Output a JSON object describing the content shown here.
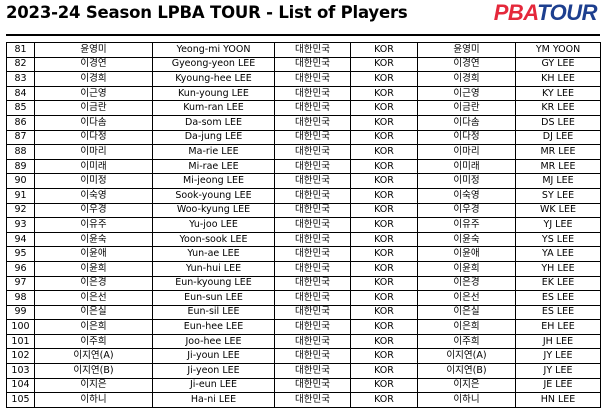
{
  "header": {
    "title": "2023-24 Season LPBA TOUR - List of Players",
    "logo_part1": "PBA",
    "logo_part2": "TOUR"
  },
  "colors": {
    "logo_red": "#e5283b",
    "logo_blue": "#1d3f8f"
  },
  "rows": [
    [
      "81",
      "윤영미",
      "Yeong-mi YOON",
      "대한민국",
      "KOR",
      "윤영미",
      "YM YOON"
    ],
    [
      "82",
      "이경연",
      "Gyeong-yeon LEE",
      "대한민국",
      "KOR",
      "이경연",
      "GY LEE"
    ],
    [
      "83",
      "이경희",
      "Kyoung-hee LEE",
      "대한민국",
      "KOR",
      "이경희",
      "KH LEE"
    ],
    [
      "84",
      "이근영",
      "Kun-young LEE",
      "대한민국",
      "KOR",
      "이근영",
      "KY LEE"
    ],
    [
      "85",
      "이금란",
      "Kum-ran LEE",
      "대한민국",
      "KOR",
      "이금란",
      "KR LEE"
    ],
    [
      "86",
      "이다솜",
      "Da-som LEE",
      "대한민국",
      "KOR",
      "이다솜",
      "DS LEE"
    ],
    [
      "87",
      "이다정",
      "Da-jung LEE",
      "대한민국",
      "KOR",
      "이다정",
      "DJ LEE"
    ],
    [
      "88",
      "이마리",
      "Ma-rie LEE",
      "대한민국",
      "KOR",
      "이마리",
      "MR LEE"
    ],
    [
      "89",
      "이미래",
      "Mi-rae LEE",
      "대한민국",
      "KOR",
      "이미래",
      "MR LEE"
    ],
    [
      "90",
      "이미정",
      "Mi-jeong LEE",
      "대한민국",
      "KOR",
      "이미정",
      "MJ LEE"
    ],
    [
      "91",
      "이숙영",
      "Sook-young LEE",
      "대한민국",
      "KOR",
      "이숙영",
      "SY LEE"
    ],
    [
      "92",
      "이우경",
      "Woo-kyung LEE",
      "대한민국",
      "KOR",
      "이우경",
      "WK LEE"
    ],
    [
      "93",
      "이유주",
      "Yu-joo LEE",
      "대한민국",
      "KOR",
      "이유주",
      "YJ LEE"
    ],
    [
      "94",
      "이윤숙",
      "Yoon-sook LEE",
      "대한민국",
      "KOR",
      "이윤숙",
      "YS LEE"
    ],
    [
      "95",
      "이윤애",
      "Yun-ae LEE",
      "대한민국",
      "KOR",
      "이윤애",
      "YA LEE"
    ],
    [
      "96",
      "이윤희",
      "Yun-hui LEE",
      "대한민국",
      "KOR",
      "이윤희",
      "YH LEE"
    ],
    [
      "97",
      "이은경",
      "Eun-kyoung LEE",
      "대한민국",
      "KOR",
      "이은경",
      "EK LEE"
    ],
    [
      "98",
      "이은선",
      "Eun-sun LEE",
      "대한민국",
      "KOR",
      "이은선",
      "ES LEE"
    ],
    [
      "99",
      "이은실",
      "Eun-sil LEE",
      "대한민국",
      "KOR",
      "이은실",
      "ES LEE"
    ],
    [
      "100",
      "이은희",
      "Eun-hee LEE",
      "대한민국",
      "KOR",
      "이은희",
      "EH LEE"
    ],
    [
      "101",
      "이주희",
      "Joo-hee LEE",
      "대한민국",
      "KOR",
      "이주희",
      "JH LEE"
    ],
    [
      "102",
      "이지연(A)",
      "Ji-youn LEE",
      "대한민국",
      "KOR",
      "이지연(A)",
      "JY LEE"
    ],
    [
      "103",
      "이지연(B)",
      "Ji-yeon LEE",
      "대한민국",
      "KOR",
      "이지연(B)",
      "JY LEE"
    ],
    [
      "104",
      "이지은",
      "Ji-eun LEE",
      "대한민국",
      "KOR",
      "이지은",
      "JE LEE"
    ],
    [
      "105",
      "이하니",
      "Ha-ni LEE",
      "대한민국",
      "KOR",
      "이하니",
      "HN LEE"
    ]
  ]
}
